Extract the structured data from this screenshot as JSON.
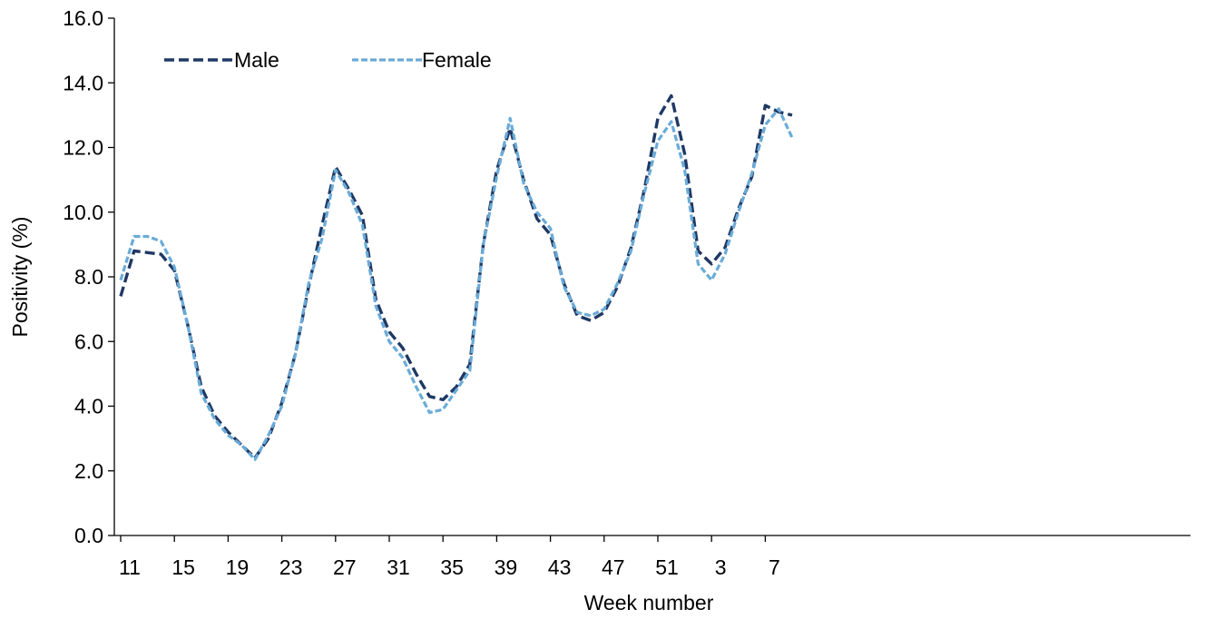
{
  "chart_data": {
    "type": "line",
    "title": "",
    "xlabel": "Week number",
    "ylabel": "Positivity (%)",
    "ylim": [
      0,
      16
    ],
    "yticks": [
      "0.0",
      "2.0",
      "4.0",
      "6.0",
      "8.0",
      "10.0",
      "12.0",
      "14.0",
      "16.0"
    ],
    "xticks": [
      "11",
      "15",
      "19",
      "23",
      "27",
      "31",
      "35",
      "39",
      "43",
      "47",
      "51",
      "3",
      "7"
    ],
    "categories": [
      "11",
      "12",
      "13",
      "14",
      "15",
      "16",
      "17",
      "18",
      "19",
      "20",
      "21",
      "22",
      "23",
      "24",
      "25",
      "26",
      "27",
      "28",
      "29",
      "30",
      "31",
      "32",
      "33",
      "34",
      "35",
      "36",
      "37",
      "38",
      "39",
      "40",
      "41",
      "42",
      "43",
      "44",
      "45",
      "46",
      "47",
      "48",
      "49",
      "50",
      "51",
      "52",
      "1",
      "2",
      "3",
      "4",
      "5",
      "6",
      "7",
      "8",
      "9"
    ],
    "legend_position": "top-left",
    "grid": false,
    "series": [
      {
        "name": "Male",
        "color": "#1f3864",
        "style": "dashed",
        "values": [
          7.4,
          8.8,
          8.75,
          8.7,
          8.2,
          6.5,
          4.6,
          3.7,
          3.2,
          2.8,
          2.4,
          3.0,
          4.1,
          5.6,
          7.7,
          9.6,
          11.4,
          10.7,
          9.9,
          7.3,
          6.3,
          5.8,
          5.0,
          4.3,
          4.2,
          4.6,
          5.3,
          9.0,
          11.3,
          12.6,
          11.0,
          9.8,
          9.3,
          7.8,
          6.8,
          6.65,
          6.9,
          7.7,
          8.9,
          10.7,
          12.9,
          13.6,
          11.8,
          8.8,
          8.4,
          8.9,
          10.1,
          11.1,
          13.3,
          13.1,
          13.0
        ]
      },
      {
        "name": "Female",
        "color": "#6aabd8",
        "style": "dashed",
        "values": [
          7.9,
          9.25,
          9.25,
          9.1,
          8.3,
          6.5,
          4.4,
          3.6,
          3.1,
          2.8,
          2.35,
          3.1,
          4.0,
          5.6,
          7.8,
          9.2,
          11.3,
          10.6,
          9.6,
          7.1,
          6.0,
          5.5,
          4.6,
          3.8,
          3.9,
          4.5,
          5.1,
          9.0,
          11.1,
          12.9,
          10.9,
          10.0,
          9.5,
          7.7,
          6.9,
          6.8,
          7.0,
          7.8,
          8.8,
          10.6,
          12.2,
          12.8,
          11.3,
          8.4,
          7.9,
          8.7,
          10.0,
          11.2,
          12.7,
          13.2,
          12.3
        ]
      }
    ]
  }
}
